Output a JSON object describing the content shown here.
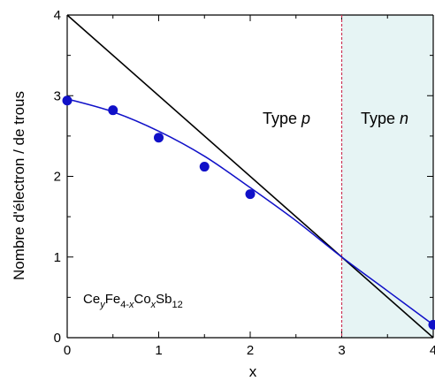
{
  "chart_data": {
    "type": "scatter",
    "xlabel": "x",
    "ylabel": "Nombre d'électron / de trous",
    "xlim": [
      0,
      4
    ],
    "ylim": [
      0,
      4
    ],
    "x_ticks": [
      "0",
      "1",
      "2",
      "3",
      "4"
    ],
    "y_ticks": [
      "0",
      "1",
      "2",
      "3",
      "4"
    ],
    "grid": false,
    "series": [
      {
        "type": "scatter",
        "color": "#1010c8",
        "x": [
          0,
          0.5,
          1,
          1.5,
          2,
          4
        ],
        "y": [
          2.94,
          2.82,
          2.48,
          2.12,
          1.78,
          0.16
        ]
      },
      {
        "type": "line",
        "color": "#1010c8",
        "x": [
          0,
          0.5,
          1,
          1.5,
          2,
          2.5,
          3,
          3.5,
          4
        ],
        "y": [
          2.96,
          2.8,
          2.56,
          2.25,
          1.86,
          1.45,
          1.0,
          0.58,
          0.16
        ]
      },
      {
        "type": "line",
        "color": "#000000",
        "x": [
          0,
          4
        ],
        "y": [
          4,
          0
        ]
      }
    ],
    "threshold": {
      "x": 3,
      "color": "#cc3355"
    },
    "shaded_region": {
      "x_from": 3,
      "x_to": 4,
      "color": "#e6f4f4"
    },
    "regions": {
      "p": {
        "prefix": "Type ",
        "letter": "p"
      },
      "n": {
        "prefix": "Type ",
        "letter": "n"
      }
    },
    "formula": {
      "parts": [
        {
          "t": "Ce",
          "sub": false
        },
        {
          "t": "y",
          "sub": true
        },
        {
          "t": "Fe",
          "sub": false
        },
        {
          "t": "4-x",
          "sub": true
        },
        {
          "t": "Co",
          "sub": false
        },
        {
          "t": "x",
          "sub": true
        },
        {
          "t": "Sb",
          "sub": false
        },
        {
          "t": "12",
          "sub": true
        }
      ]
    }
  }
}
